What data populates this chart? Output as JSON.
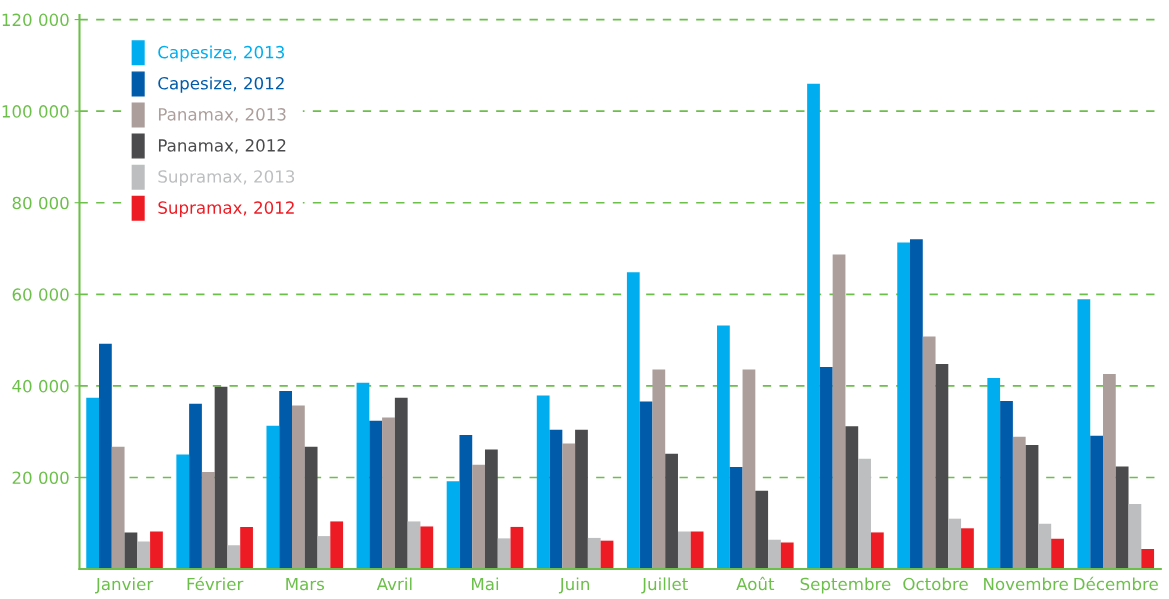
{
  "chart_data": {
    "type": "bar",
    "categories": [
      "Janvier",
      "Février",
      "Mars",
      "Avril",
      "Mai",
      "Juin",
      "Juillet",
      "Août",
      "Septembre",
      "Octobre",
      "Novembre",
      "Décembre"
    ],
    "series": [
      {
        "name": "Capesize, 2013",
        "color": "#00aeef",
        "values": [
          37400,
          25000,
          31300,
          40700,
          19200,
          37900,
          64800,
          53200,
          106000,
          71300,
          41700,
          58900
        ]
      },
      {
        "name": "Capesize, 2012",
        "color": "#005baa",
        "values": [
          49200,
          36100,
          38900,
          32400,
          29300,
          30400,
          36600,
          22300,
          44100,
          72000,
          36700,
          29100
        ]
      },
      {
        "name": "Panamax, 2013",
        "color": "#ab9e9b",
        "values": [
          26700,
          21200,
          35700,
          33100,
          22800,
          27400,
          43600,
          43600,
          68700,
          50800,
          28900,
          42600
        ]
      },
      {
        "name": "Panamax, 2012",
        "color": "#4b4b4d",
        "values": [
          8000,
          39800,
          26700,
          37400,
          26100,
          30400,
          25200,
          17100,
          31200,
          44800,
          27100,
          22400
        ]
      },
      {
        "name": "Supramax, 2013",
        "color": "#bcbec0",
        "values": [
          6000,
          5200,
          7200,
          10400,
          6700,
          6800,
          8200,
          6400,
          24100,
          11000,
          9900,
          14200
        ]
      },
      {
        "name": "Supramax, 2012",
        "color": "#ed1c24",
        "values": [
          8200,
          9200,
          10400,
          9300,
          9200,
          6200,
          8200,
          5800,
          8000,
          8900,
          6600,
          4400
        ]
      }
    ],
    "ylim": [
      0,
      121000
    ],
    "yticks": [
      {
        "value": 20000,
        "label": "20 000"
      },
      {
        "value": 40000,
        "label": "40 000"
      },
      {
        "value": 60000,
        "label": "60 000"
      },
      {
        "value": 80000,
        "label": "80 000"
      },
      {
        "value": 100000,
        "label": "100 000"
      },
      {
        "value": 120000,
        "label": "120 000"
      }
    ],
    "grid": "y",
    "line_style": "dashed",
    "legend": "top left"
  }
}
